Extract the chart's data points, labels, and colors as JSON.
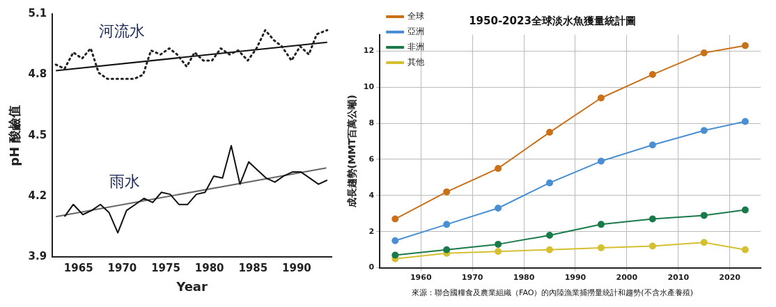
{
  "chart_data": [
    {
      "type": "line",
      "xlabel": "Year",
      "ylabel": "pH 酸鹼值",
      "xlim": [
        1962,
        1994
      ],
      "ylim": [
        3.9,
        5.1
      ],
      "xticks": [
        1965,
        1970,
        1975,
        1980,
        1985,
        1990
      ],
      "yticks": [
        3.9,
        4.2,
        4.5,
        4.8,
        5.1
      ],
      "grid": false,
      "legend": false,
      "marker": "none",
      "series": [
        {
          "name": "河流水",
          "color": "#222222",
          "line_style": "dotted",
          "x": [
            1962.4,
            1963.4,
            1964.4,
            1965.4,
            1966.4,
            1967.3,
            1968.3,
            1969.4,
            1970.4,
            1971.4,
            1972.4,
            1973.3,
            1974.4,
            1975.4,
            1976.3,
            1977.4,
            1978.3,
            1979.3,
            1980.3,
            1981.3,
            1982.3,
            1983.3,
            1984.4,
            1985.4,
            1986.4,
            1987.4,
            1988.3,
            1989.4,
            1990.4,
            1991.4,
            1992.3,
            1993.5
          ],
          "values": [
            4.85,
            4.83,
            4.91,
            4.88,
            4.93,
            4.81,
            4.78,
            4.78,
            4.78,
            4.78,
            4.8,
            4.92,
            4.9,
            4.93,
            4.9,
            4.84,
            4.91,
            4.87,
            4.87,
            4.93,
            4.9,
            4.92,
            4.87,
            4.93,
            5.02,
            4.97,
            4.94,
            4.87,
            4.94,
            4.9,
            5.0,
            5.02
          ]
        },
        {
          "name": "雨水",
          "color": "#111111",
          "line_style": "solid",
          "x": [
            1963.4,
            1964.4,
            1965.5,
            1966.5,
            1967.5,
            1968.5,
            1969.5,
            1970.5,
            1971.5,
            1972.5,
            1973.5,
            1974.5,
            1975.5,
            1976.5,
            1977.5,
            1978.5,
            1979.5,
            1980.5,
            1981.5,
            1982.5,
            1983.5,
            1984.5,
            1985.5,
            1986.5,
            1987.5,
            1988.5,
            1989.5,
            1990.5,
            1991.5,
            1992.5,
            1993.5
          ],
          "values": [
            4.1,
            4.16,
            4.11,
            4.13,
            4.16,
            4.12,
            4.02,
            4.13,
            4.16,
            4.19,
            4.17,
            4.22,
            4.21,
            4.16,
            4.16,
            4.21,
            4.22,
            4.3,
            4.29,
            4.45,
            4.26,
            4.37,
            4.33,
            4.29,
            4.27,
            4.3,
            4.32,
            4.32,
            4.29,
            4.26,
            4.28
          ]
        },
        {
          "color": "#111111",
          "line_style": "solid",
          "x": [
            1962.4,
            1993.5
          ],
          "values": [
            4.82,
            4.96
          ]
        },
        {
          "color": "#666666",
          "line_style": "solid",
          "x": [
            1962.4,
            1993.4
          ],
          "values": [
            4.1,
            4.34
          ]
        }
      ]
    },
    {
      "type": "line",
      "title": "1950-2023全球淡水魚獲量統計圖",
      "ylabel": "成長趨勢(MMT百萬公噸)",
      "xlim": [
        1952,
        2026
      ],
      "ylim": [
        0,
        12.9
      ],
      "xticks": [
        1960,
        1970,
        1980,
        1990,
        2000,
        2010,
        2020
      ],
      "yticks": [
        0,
        2,
        4,
        6,
        8,
        10,
        12
      ],
      "grid": true,
      "legend": "top left",
      "marker": "circle",
      "line_style": "solid",
      "annotations": [
        "來源：聯合國糧食及農業組織（FAO）的內陸漁業捕撈量統計和趨勢(不含水產養殖)"
      ],
      "x": [
        1955,
        1965,
        1975,
        1985,
        1995,
        2005,
        2015,
        2023
      ],
      "series": [
        {
          "name": "全球",
          "color": "#c8711a",
          "values": [
            2.7,
            4.2,
            5.5,
            7.5,
            9.4,
            10.7,
            11.9,
            12.3
          ]
        },
        {
          "name": "亞洲",
          "color": "#4a8fd4",
          "values": [
            1.5,
            2.4,
            3.3,
            4.7,
            5.9,
            6.8,
            7.6,
            8.1
          ]
        },
        {
          "name": "非洲",
          "color": "#1a7a4a",
          "values": [
            0.7,
            1.0,
            1.3,
            1.8,
            2.4,
            2.7,
            2.9,
            3.2
          ]
        },
        {
          "name": "其他",
          "color": "#d4c030",
          "values": [
            0.5,
            0.8,
            0.9,
            1.0,
            1.1,
            1.2,
            1.4,
            1.0
          ]
        }
      ]
    }
  ]
}
